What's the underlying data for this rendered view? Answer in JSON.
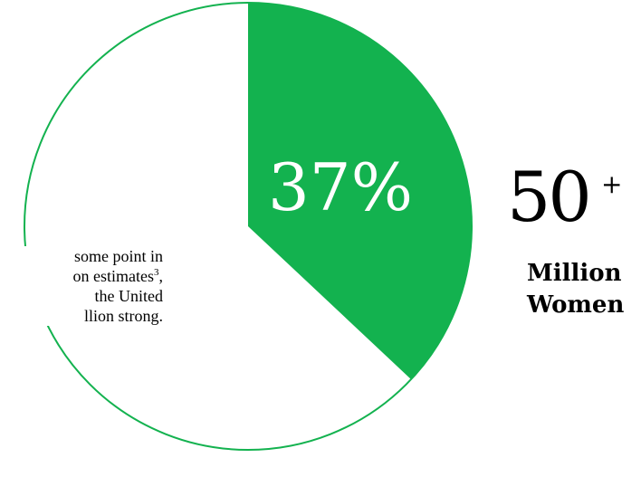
{
  "chart_data": {
    "type": "pie",
    "slices": [
      {
        "label": "37%",
        "value": 37,
        "color": "#13B24F",
        "highlighted": true
      },
      {
        "label": "",
        "value": 63,
        "color": "#FFFFFF",
        "highlighted": false
      }
    ],
    "outline_color": "#13B24F"
  },
  "text": {
    "paragraph_lines": [
      "some point in",
      "on estimates",
      "the United",
      "llion strong."
    ],
    "footnote_marker": "3",
    "footnote_suffix": ","
  },
  "stat": {
    "number": "50",
    "plus": "+",
    "caption_line1": "Million",
    "caption_line2": "Women"
  },
  "colors": {
    "green": "#13B24F",
    "text": "#000000",
    "background": "#FFFFFF"
  }
}
